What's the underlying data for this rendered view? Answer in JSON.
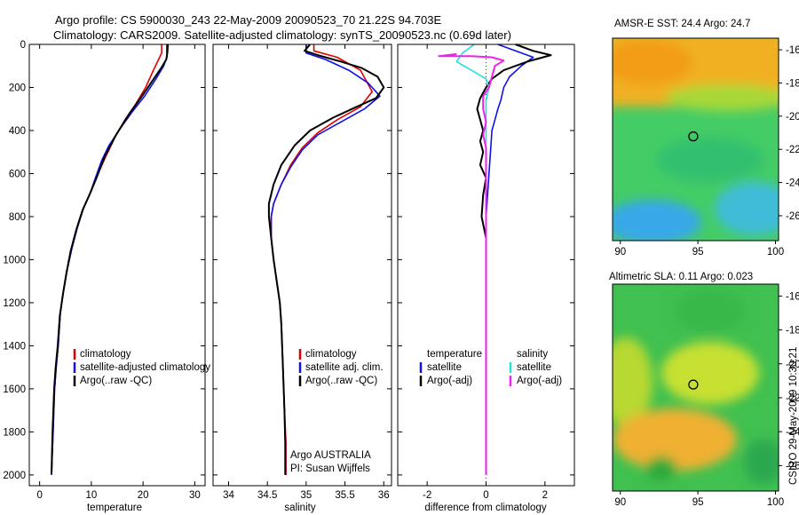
{
  "header": {
    "line1": "Argo profile: CS 5900030_243 22-May-2009 20090523_70 21.22S 94.703E",
    "line2": "Climatology: CARS2009. Satellite-adjusted climatology: synTS_20090523.nc (0.69d later)"
  },
  "side_stamp": "CSIRO 29-May-2009 10:30:21",
  "colors": {
    "red": "#e00000",
    "blue": "#1010ee",
    "black": "#000000",
    "cyan": "#22e0e0",
    "magenta": "#ee22ee"
  },
  "chart_data": [
    {
      "id": "temperature",
      "type": "line",
      "xlabel": "temperature",
      "ylabel": "",
      "xlim": [
        -2,
        32
      ],
      "ylim": [
        2050,
        0
      ],
      "xticks": [
        "0",
        "10",
        "20",
        "30"
      ],
      "yticks": [
        "0",
        "200",
        "400",
        "600",
        "800",
        "1000",
        "1200",
        "1400",
        "1600",
        "1800",
        "2000"
      ],
      "legend": [
        "climatology",
        "satellite-adjusted climatology",
        "Argo(..raw -QC)"
      ],
      "legend_colors": [
        "#e00000",
        "#1010ee",
        "#000000"
      ],
      "series": [
        {
          "name": "climatology",
          "color": "#e00000",
          "points": [
            [
              23.6,
              0
            ],
            [
              23.6,
              40
            ],
            [
              23.0,
              70
            ],
            [
              22.0,
              120
            ],
            [
              20.5,
              200
            ],
            [
              18.5,
              280
            ],
            [
              16.5,
              350
            ],
            [
              14.6,
              430
            ],
            [
              12.8,
              520
            ],
            [
              11.3,
              600
            ],
            [
              10.0,
              680
            ],
            [
              8.5,
              760
            ],
            [
              7.3,
              850
            ],
            [
              6.2,
              950
            ],
            [
              5.3,
              1050
            ],
            [
              4.6,
              1150
            ],
            [
              4.0,
              1250
            ],
            [
              3.6,
              1400
            ],
            [
              3.2,
              1500
            ],
            [
              2.9,
              1600
            ],
            [
              2.6,
              1800
            ],
            [
              2.3,
              2000
            ]
          ]
        },
        {
          "name": "satellite-adjusted climatology",
          "color": "#1010ee",
          "points": [
            [
              24.6,
              0
            ],
            [
              24.6,
              60
            ],
            [
              24.0,
              100
            ],
            [
              22.5,
              160
            ],
            [
              20.3,
              240
            ],
            [
              18.0,
              310
            ],
            [
              15.6,
              390
            ],
            [
              13.4,
              470
            ],
            [
              12.0,
              540
            ],
            [
              10.8,
              620
            ],
            [
              9.8,
              690
            ],
            [
              8.5,
              760
            ],
            [
              7.3,
              850
            ],
            [
              6.2,
              950
            ],
            [
              5.3,
              1050
            ],
            [
              4.6,
              1150
            ],
            [
              4.0,
              1250
            ],
            [
              3.6,
              1400
            ],
            [
              3.2,
              1500
            ],
            [
              2.9,
              1600
            ],
            [
              2.6,
              1800
            ],
            [
              2.3,
              2000
            ]
          ]
        },
        {
          "name": "Argo(..raw -QC)",
          "color": "#000000",
          "points": [
            [
              24.8,
              0
            ],
            [
              24.7,
              40
            ],
            [
              24.5,
              70
            ],
            [
              23.5,
              110
            ],
            [
              21.8,
              170
            ],
            [
              19.8,
              240
            ],
            [
              17.4,
              320
            ],
            [
              14.8,
              420
            ],
            [
              12.6,
              520
            ],
            [
              11.0,
              620
            ],
            [
              9.6,
              700
            ],
            [
              8.3,
              770
            ],
            [
              7.1,
              860
            ],
            [
              6.0,
              960
            ],
            [
              5.2,
              1060
            ],
            [
              4.5,
              1160
            ],
            [
              3.9,
              1260
            ],
            [
              3.5,
              1400
            ],
            [
              3.1,
              1500
            ],
            [
              2.8,
              1600
            ],
            [
              2.5,
              1800
            ],
            [
              2.3,
              1995
            ]
          ]
        }
      ]
    },
    {
      "id": "salinity",
      "type": "line",
      "xlabel": "salinity",
      "ylabel": "",
      "xlim": [
        33.8,
        36.1
      ],
      "ylim": [
        2050,
        0
      ],
      "xticks": [
        "34",
        "34.5",
        "35",
        "35.5",
        "36"
      ],
      "yticks": [],
      "legend": [
        "climatology",
        "satellite adj. clim.",
        "Argo(..raw -QC)"
      ],
      "legend_colors": [
        "#e00000",
        "#1010ee",
        "#000000"
      ],
      "annotation": [
        "Argo AUSTRALIA",
        "PI: Susan Wijffels"
      ],
      "series": [
        {
          "name": "climatology",
          "color": "#e00000",
          "points": [
            [
              35.1,
              0
            ],
            [
              35.1,
              30
            ],
            [
              35.4,
              60
            ],
            [
              35.7,
              120
            ],
            [
              35.85,
              220
            ],
            [
              35.7,
              290
            ],
            [
              35.4,
              350
            ],
            [
              35.15,
              410
            ],
            [
              34.95,
              480
            ],
            [
              34.8,
              560
            ],
            [
              34.68,
              650
            ],
            [
              34.58,
              740
            ],
            [
              34.55,
              800
            ],
            [
              34.55,
              900
            ],
            [
              34.58,
              1000
            ],
            [
              34.62,
              1100
            ],
            [
              34.66,
              1200
            ],
            [
              34.68,
              1300
            ],
            [
              34.7,
              1500
            ],
            [
              34.72,
              1700
            ],
            [
              34.74,
              1850
            ],
            [
              34.74,
              2000
            ]
          ]
        },
        {
          "name": "satellite adj. clim.",
          "color": "#1010ee",
          "points": [
            [
              35.0,
              0
            ],
            [
              35.0,
              40
            ],
            [
              35.25,
              70
            ],
            [
              35.55,
              120
            ],
            [
              35.8,
              180
            ],
            [
              35.95,
              240
            ],
            [
              35.75,
              300
            ],
            [
              35.45,
              360
            ],
            [
              35.15,
              420
            ],
            [
              34.95,
              490
            ],
            [
              34.8,
              570
            ],
            [
              34.68,
              650
            ],
            [
              34.58,
              740
            ],
            [
              34.55,
              800
            ],
            [
              34.55,
              900
            ],
            [
              34.58,
              1000
            ],
            [
              34.62,
              1100
            ],
            [
              34.66,
              1200
            ],
            [
              34.68,
              1300
            ],
            [
              34.7,
              1500
            ],
            [
              34.72,
              1700
            ],
            [
              34.73,
              1850
            ],
            [
              34.73,
              2000
            ]
          ]
        },
        {
          "name": "Argo(..raw -QC)",
          "color": "#000000",
          "points": [
            [
              35.05,
              0
            ],
            [
              34.98,
              30
            ],
            [
              35.15,
              50
            ],
            [
              35.45,
              80
            ],
            [
              35.72,
              110
            ],
            [
              35.92,
              150
            ],
            [
              36.0,
              200
            ],
            [
              35.9,
              250
            ],
            [
              35.65,
              290
            ],
            [
              35.35,
              340
            ],
            [
              35.05,
              400
            ],
            [
              34.85,
              470
            ],
            [
              34.68,
              560
            ],
            [
              34.58,
              650
            ],
            [
              34.52,
              740
            ],
            [
              34.52,
              800
            ],
            [
              34.55,
              900
            ],
            [
              34.58,
              1000
            ],
            [
              34.62,
              1100
            ],
            [
              34.66,
              1200
            ],
            [
              34.68,
              1300
            ],
            [
              34.7,
              1500
            ],
            [
              34.72,
              1700
            ],
            [
              34.73,
              1850
            ],
            [
              34.73,
              2000
            ]
          ]
        }
      ]
    },
    {
      "id": "difference",
      "type": "line",
      "xlabel": "difference from climatology",
      "ylabel": "",
      "xlim": [
        -3,
        3
      ],
      "ylim": [
        2050,
        0
      ],
      "xticks": [
        "-2",
        "0",
        "2"
      ],
      "yticks": [],
      "legend_headers": [
        "temperature",
        "salinity"
      ],
      "legend_left": [
        "satellite",
        "Argo(-adj)"
      ],
      "legend_left_colors": [
        "#1010ee",
        "#000000"
      ],
      "legend_right": [
        "satellite",
        "Argo(-adj)"
      ],
      "legend_right_colors": [
        "#22e0e0",
        "#ee22ee"
      ],
      "series": [
        {
          "name": "temperature satellite",
          "color": "#1010ee",
          "points": [
            [
              0.4,
              0
            ],
            [
              1.0,
              30
            ],
            [
              1.6,
              60
            ],
            [
              1.2,
              100
            ],
            [
              0.8,
              150
            ],
            [
              0.6,
              200
            ],
            [
              0.5,
              260
            ],
            [
              0.4,
              300
            ],
            [
              0.3,
              350
            ],
            [
              0.2,
              400
            ],
            [
              0.15,
              500
            ],
            [
              0.1,
              600
            ],
            [
              0.05,
              700
            ],
            [
              0.0,
              800
            ],
            [
              0.0,
              2000
            ]
          ]
        },
        {
          "name": "temperature Argo(-adj)",
          "color": "#000000",
          "points": [
            [
              1.0,
              0
            ],
            [
              1.6,
              30
            ],
            [
              2.2,
              50
            ],
            [
              1.4,
              80
            ],
            [
              0.6,
              120
            ],
            [
              0.2,
              160
            ],
            [
              0.0,
              200
            ],
            [
              -0.2,
              250
            ],
            [
              -0.3,
              300
            ],
            [
              -0.2,
              350
            ],
            [
              -0.1,
              400
            ],
            [
              -0.2,
              450
            ],
            [
              -0.1,
              500
            ],
            [
              -0.2,
              560
            ],
            [
              0.0,
              620
            ],
            [
              -0.1,
              700
            ],
            [
              -0.15,
              800
            ],
            [
              0.0,
              900
            ],
            [
              0.0,
              1000
            ],
            [
              0.0,
              1100
            ],
            [
              0.0,
              1700
            ],
            [
              0.0,
              2000
            ]
          ]
        },
        {
          "name": "salinity satellite",
          "color": "#22e0e0",
          "points": [
            [
              -0.4,
              0
            ],
            [
              -0.8,
              40
            ],
            [
              -1.0,
              80
            ],
            [
              -0.5,
              120
            ],
            [
              0.0,
              160
            ],
            [
              0.1,
              200
            ],
            [
              0.0,
              260
            ],
            [
              0.0,
              400
            ],
            [
              0.0,
              800
            ],
            [
              0.0,
              2000
            ]
          ]
        },
        {
          "name": "salinity Argo(-adj)",
          "color": "#ee22ee",
          "points": [
            [
              -1.0,
              45
            ],
            [
              -1.6,
              55
            ],
            [
              -0.5,
              55
            ],
            [
              0.2,
              60
            ],
            [
              0.6,
              75
            ],
            [
              0.3,
              100
            ],
            [
              0.2,
              150
            ],
            [
              0.1,
              200
            ],
            [
              -0.1,
              240
            ],
            [
              -0.1,
              300
            ],
            [
              0.0,
              360
            ],
            [
              -0.1,
              420
            ],
            [
              0.0,
              480
            ],
            [
              0.0,
              600
            ],
            [
              0.0,
              800
            ],
            [
              0.0,
              2000
            ]
          ]
        }
      ]
    },
    {
      "id": "sst_map",
      "type": "heatmap",
      "title": "AMSR-E SST: 24.4 Argo: 24.7",
      "xlim": [
        89.5,
        100.2
      ],
      "ylim": [
        -27.5,
        -15.3
      ],
      "xticks": [
        "90",
        "95",
        "100"
      ],
      "yticks": [
        "-16",
        "-18",
        "-20",
        "-22",
        "-24",
        "-26"
      ],
      "marker": {
        "lon": 94.703,
        "lat": -21.22
      }
    },
    {
      "id": "sla_map",
      "type": "heatmap",
      "title": "Altimetric SLA: 0.11 Argo: 0.023",
      "xlim": [
        89.5,
        100.2
      ],
      "ylim": [
        -27.5,
        -15.3
      ],
      "xticks": [
        "90",
        "95",
        "100"
      ],
      "yticks": [
        "-16",
        "-18",
        "-20",
        "-22",
        "-24",
        "-26"
      ],
      "marker": {
        "lon": 94.703,
        "lat": -21.22
      }
    }
  ]
}
